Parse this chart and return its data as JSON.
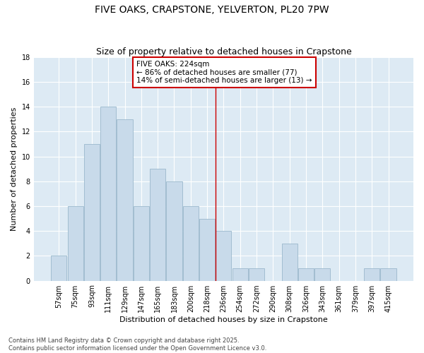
{
  "title": "FIVE OAKS, CRAPSTONE, YELVERTON, PL20 7PW",
  "subtitle": "Size of property relative to detached houses in Crapstone",
  "xlabel": "Distribution of detached houses by size in Crapstone",
  "ylabel": "Number of detached properties",
  "categories": [
    "57sqm",
    "75sqm",
    "93sqm",
    "111sqm",
    "129sqm",
    "147sqm",
    "165sqm",
    "183sqm",
    "200sqm",
    "218sqm",
    "236sqm",
    "254sqm",
    "272sqm",
    "290sqm",
    "308sqm",
    "326sqm",
    "343sqm",
    "361sqm",
    "379sqm",
    "397sqm",
    "415sqm"
  ],
  "values": [
    2,
    6,
    11,
    14,
    13,
    6,
    9,
    8,
    6,
    5,
    4,
    1,
    1,
    0,
    3,
    1,
    1,
    0,
    0,
    1,
    1
  ],
  "bar_color": "#c8daea",
  "bar_edge_color": "#9ab8cc",
  "vline_x_index": 9.5,
  "vline_color": "#cc0000",
  "annotation_title": "FIVE OAKS: 224sqm",
  "annotation_line1": "← 86% of detached houses are smaller (77)",
  "annotation_line2": "14% of semi-detached houses are larger (13) →",
  "annotation_box_color": "#ffffff",
  "annotation_box_edge_color": "#cc0000",
  "ylim": [
    0,
    18
  ],
  "yticks": [
    0,
    2,
    4,
    6,
    8,
    10,
    12,
    14,
    16,
    18
  ],
  "background_color": "#ffffff",
  "plot_bg_color": "#ddeaf4",
  "footer_line1": "Contains HM Land Registry data © Crown copyright and database right 2025.",
  "footer_line2": "Contains public sector information licensed under the Open Government Licence v3.0.",
  "title_fontsize": 10,
  "subtitle_fontsize": 9,
  "axis_label_fontsize": 8,
  "tick_fontsize": 7,
  "annotation_fontsize": 7.5,
  "footer_fontsize": 6
}
